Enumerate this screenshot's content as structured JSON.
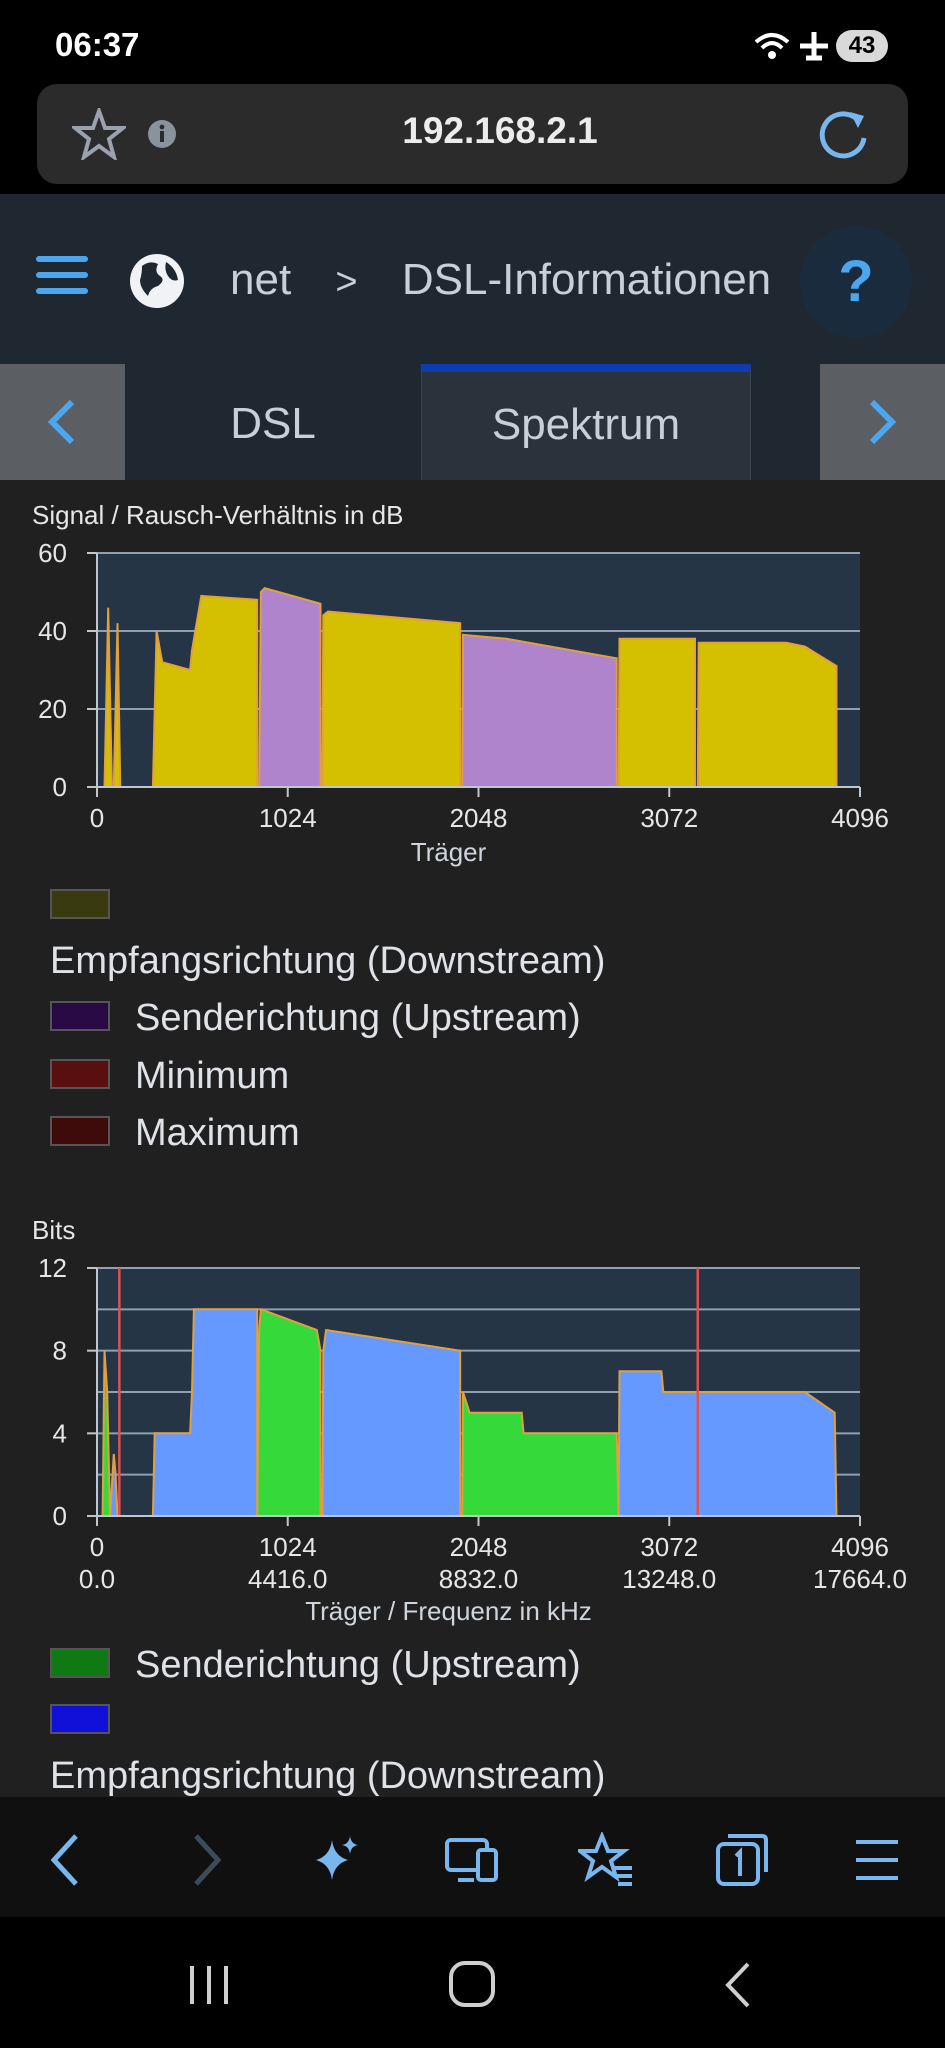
{
  "status": {
    "time": "06:37",
    "battery": "43"
  },
  "browser": {
    "url": "192.168.2.1"
  },
  "header": {
    "breadcrumb_parent": "net",
    "breadcrumb_separator": ">",
    "page_title": "DSL-Informationen",
    "help_label": "?"
  },
  "tabs": {
    "items": [
      {
        "label": "DSL"
      },
      {
        "label": "Spektrum"
      }
    ],
    "active": "Spektrum"
  },
  "colors": {
    "downstream_snr": "#d4c000",
    "upstream_snr": "#b084cc",
    "downstream_bits": "#6699ff",
    "upstream_bits": "#36d93a",
    "edge": "#e0a040",
    "marker": "#e05050",
    "plot_bg": "#253545"
  },
  "snr_chart": {
    "title": "Signal / Rausch-Verhältnis in dB",
    "xlabel": "Träger",
    "y_ticks": [
      "60",
      "40",
      "20",
      "0"
    ],
    "x_ticks": [
      "0",
      "1024",
      "2048",
      "3072",
      "4096"
    ],
    "legend": [
      {
        "label": "Empfangsrichtung (Downstream)",
        "color": "#3a3a10"
      },
      {
        "label": "Senderichtung (Upstream)",
        "color": "#2a0a44"
      },
      {
        "label": "Minimum",
        "color": "#5a0f0f"
      },
      {
        "label": "Maximum",
        "color": "#3e0a0a"
      }
    ]
  },
  "bits_chart": {
    "title": "Bits",
    "xlabel": "Träger / Frequenz in kHz",
    "y_ticks": [
      "12",
      "8",
      "4",
      "0"
    ],
    "x_ticks": [
      "0",
      "1024",
      "2048",
      "3072",
      "4096"
    ],
    "x_freq_ticks": [
      "0.0",
      "4416.0",
      "8832.0",
      "13248.0",
      "17664.0"
    ],
    "legend": [
      {
        "label": "Senderichtung (Upstream)",
        "color": "#0f7a14"
      },
      {
        "label": "Empfangsrichtung (Downstream)",
        "color": "#1010d8"
      }
    ]
  },
  "chart_data": [
    {
      "type": "area",
      "title": "Signal / Rausch-Verhältnis in dB",
      "xlabel": "Träger",
      "xlim": [
        0,
        4096
      ],
      "ylim": [
        0,
        60
      ],
      "grid": true,
      "series": [
        {
          "name": "Empfangsrichtung (Downstream)",
          "segments": [
            {
              "x": [
                40,
                60,
                80
              ],
              "y": [
                0,
                46,
                0
              ]
            },
            {
              "x": [
                90,
                110,
                125
              ],
              "y": [
                0,
                42,
                0
              ]
            },
            {
              "x": [
                300,
                320,
                350,
                500,
                510,
                560,
                860,
                860
              ],
              "y": [
                0,
                40,
                32,
                30,
                35,
                49,
                48,
                0
              ]
            },
            {
              "x": [
                1210,
                1215,
                1240,
                1950,
                1950
              ],
              "y": [
                0,
                44,
                45,
                42,
                0
              ]
            },
            {
              "x": [
                2800,
                2805,
                3210,
                3210
              ],
              "y": [
                0,
                38,
                38,
                0
              ]
            },
            {
              "x": [
                3225,
                3230,
                3700,
                3800,
                3970,
                3970
              ],
              "y": [
                0,
                37,
                37,
                36,
                31,
                0
              ]
            }
          ]
        },
        {
          "name": "Senderichtung (Upstream)",
          "segments": [
            {
              "x": [
                870,
                880,
                900,
                1200,
                1200
              ],
              "y": [
                0,
                50,
                51,
                47,
                0
              ]
            },
            {
              "x": [
                1960,
                1965,
                2200,
                2790,
                2790
              ],
              "y": [
                0,
                39,
                38,
                33,
                0
              ]
            }
          ]
        }
      ]
    },
    {
      "type": "area",
      "title": "Bits",
      "xlabel": "Träger / Frequenz in kHz",
      "xlim": [
        0,
        4096
      ],
      "ylim": [
        0,
        12
      ],
      "grid": true,
      "markers_x": [
        120,
        3225
      ],
      "series": [
        {
          "name": "Senderichtung (Upstream)",
          "segments": [
            {
              "x": [
                30,
                40,
                55,
                70
              ],
              "y": [
                0,
                8,
                6,
                0
              ]
            },
            {
              "x": [
                860,
                870,
                880,
                1180,
                1200,
                1200
              ],
              "y": [
                0,
                9,
                10,
                9,
                8,
                0
              ]
            },
            {
              "x": [
                1960,
                1965,
                2000,
                2280,
                2290,
                2790,
                2800
              ],
              "y": [
                0,
                6,
                5,
                5,
                4,
                4,
                0
              ]
            }
          ]
        },
        {
          "name": "Empfangsrichtung (Downstream)",
          "segments": [
            {
              "x": [
                70,
                90,
                100,
                110
              ],
              "y": [
                0,
                3,
                2,
                0
              ]
            },
            {
              "x": [
                300,
                310,
                500,
                510,
                520,
                860,
                860
              ],
              "y": [
                0,
                4,
                4,
                6,
                10,
                10,
                0
              ]
            },
            {
              "x": [
                1210,
                1215,
                1230,
                1950,
                1950
              ],
              "y": [
                0,
                8,
                9,
                8,
                0
              ]
            },
            {
              "x": [
                2800,
                2805,
                3030,
                3040,
                3800,
                3960,
                3970
              ],
              "y": [
                0,
                7,
                7,
                6,
                6,
                5,
                0
              ]
            }
          ]
        }
      ]
    }
  ]
}
